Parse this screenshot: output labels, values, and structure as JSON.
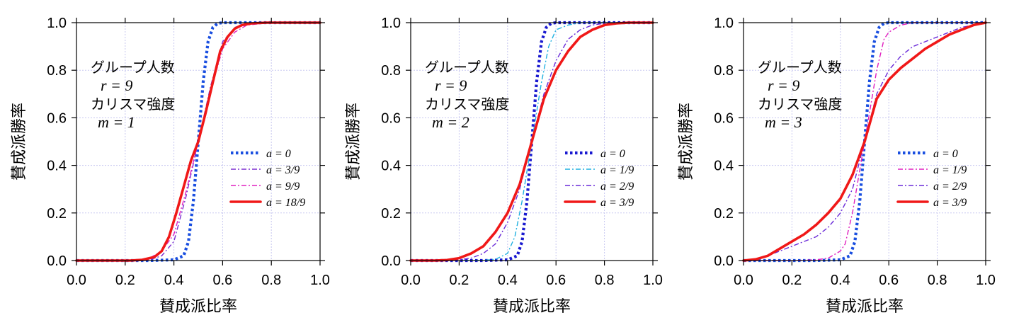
{
  "chart_data": [
    {
      "type": "line",
      "xlabel": "賛成派比率",
      "ylabel": "賛成派勝率",
      "xlim": [
        0,
        1
      ],
      "ylim": [
        0,
        1
      ],
      "xticks": [
        "0.0",
        "0.2",
        "0.4",
        "0.6",
        "0.8",
        "1.0"
      ],
      "yticks": [
        "0.0",
        "0.2",
        "0.4",
        "0.6",
        "0.8",
        "1.0"
      ],
      "grid": true,
      "legend_position": "lower-right",
      "annotation": [
        "グループ人数",
        "r = 9",
        "カリスマ強度",
        "m = 1"
      ],
      "series": [
        {
          "name": "a = 0",
          "color": "#1a4fe0",
          "style": "dotted-thick",
          "x": [
            0,
            0.1,
            0.2,
            0.3,
            0.4,
            0.44,
            0.46,
            0.48,
            0.5,
            0.52,
            0.54,
            0.56,
            0.58,
            0.6,
            0.7,
            0.8,
            1.0
          ],
          "y": [
            0,
            0,
            0,
            0,
            0.003,
            0.02,
            0.08,
            0.25,
            0.5,
            0.75,
            0.92,
            0.98,
            0.997,
            1,
            1,
            1,
            1
          ]
        },
        {
          "name": "a = 3/9",
          "color": "#7b2fd0",
          "style": "dashdot",
          "x": [
            0,
            0.2,
            0.3,
            0.35,
            0.4,
            0.45,
            0.5,
            0.55,
            0.6,
            0.65,
            0.7,
            0.8,
            1.0
          ],
          "y": [
            0,
            0,
            0.003,
            0.02,
            0.08,
            0.27,
            0.5,
            0.73,
            0.92,
            0.98,
            0.997,
            1,
            1
          ]
        },
        {
          "name": "a = 9/9",
          "color": "#e020c0",
          "style": "dashdot",
          "x": [
            0,
            0.2,
            0.25,
            0.3,
            0.35,
            0.4,
            0.45,
            0.5,
            0.55,
            0.6,
            0.65,
            0.7,
            0.8,
            1.0
          ],
          "y": [
            0,
            0,
            0.003,
            0.01,
            0.04,
            0.11,
            0.29,
            0.5,
            0.71,
            0.89,
            0.96,
            0.99,
            1,
            1
          ]
        },
        {
          "name": "a = 18/9",
          "color": "#f01818",
          "style": "solid-thick",
          "x": [
            0,
            0.22,
            0.27,
            0.32,
            0.35,
            0.38,
            0.41,
            0.44,
            0.47,
            0.5,
            0.53,
            0.56,
            0.59,
            0.62,
            0.65,
            0.68,
            0.72,
            0.78,
            1.0
          ],
          "y": [
            0,
            0,
            0.003,
            0.015,
            0.04,
            0.1,
            0.2,
            0.31,
            0.42,
            0.5,
            0.62,
            0.75,
            0.88,
            0.94,
            0.975,
            0.99,
            0.997,
            1,
            1
          ]
        }
      ]
    },
    {
      "type": "line",
      "xlabel": "賛成派比率",
      "ylabel": "賛成派勝率",
      "xlim": [
        0,
        1
      ],
      "ylim": [
        0,
        1
      ],
      "xticks": [
        "0.0",
        "0.2",
        "0.4",
        "0.6",
        "0.8",
        "1.0"
      ],
      "yticks": [
        "0.0",
        "0.2",
        "0.4",
        "0.6",
        "0.8",
        "1.0"
      ],
      "grid": true,
      "legend_position": "lower-right",
      "annotation": [
        "グループ人数",
        "r = 9",
        "カリスマ強度",
        "m = 2"
      ],
      "series": [
        {
          "name": "a = 0",
          "color": "#1a1ad0",
          "style": "dotted-thick",
          "x": [
            0,
            0.1,
            0.2,
            0.3,
            0.4,
            0.44,
            0.46,
            0.48,
            0.5,
            0.52,
            0.54,
            0.56,
            0.58,
            0.6,
            0.7,
            0.8,
            1.0
          ],
          "y": [
            0,
            0,
            0,
            0,
            0.003,
            0.02,
            0.08,
            0.25,
            0.5,
            0.75,
            0.92,
            0.98,
            0.997,
            1,
            1,
            1,
            1
          ]
        },
        {
          "name": "a = 1/9",
          "color": "#20b0e0",
          "style": "dashdot",
          "x": [
            0,
            0.3,
            0.35,
            0.4,
            0.43,
            0.46,
            0.5,
            0.54,
            0.57,
            0.6,
            0.65,
            0.7,
            0.8,
            1.0
          ],
          "y": [
            0,
            0.001,
            0.005,
            0.03,
            0.1,
            0.25,
            0.5,
            0.75,
            0.9,
            0.97,
            0.99,
            1,
            1,
            1
          ]
        },
        {
          "name": "a = 2/9",
          "color": "#6a2ad8",
          "style": "dashdot",
          "x": [
            0,
            0.15,
            0.2,
            0.25,
            0.3,
            0.35,
            0.4,
            0.45,
            0.5,
            0.55,
            0.6,
            0.65,
            0.7,
            0.75,
            0.8,
            0.85,
            0.9,
            1.0
          ],
          "y": [
            0,
            0,
            0.003,
            0.01,
            0.03,
            0.07,
            0.16,
            0.3,
            0.5,
            0.7,
            0.84,
            0.93,
            0.97,
            0.99,
            0.997,
            1,
            1,
            1
          ]
        },
        {
          "name": "a = 3/9",
          "color": "#f01818",
          "style": "solid-thick",
          "x": [
            0,
            0.1,
            0.15,
            0.2,
            0.25,
            0.3,
            0.35,
            0.4,
            0.45,
            0.5,
            0.55,
            0.6,
            0.65,
            0.7,
            0.75,
            0.8,
            0.85,
            0.9,
            1.0
          ],
          "y": [
            0,
            0,
            0.002,
            0.01,
            0.03,
            0.06,
            0.12,
            0.2,
            0.32,
            0.5,
            0.68,
            0.8,
            0.88,
            0.94,
            0.97,
            0.99,
            0.997,
            1,
            1
          ]
        }
      ]
    },
    {
      "type": "line",
      "xlabel": "賛成派比率",
      "ylabel": "賛成派勝率",
      "xlim": [
        0,
        1
      ],
      "ylim": [
        0,
        1
      ],
      "xticks": [
        "0.0",
        "0.2",
        "0.4",
        "0.6",
        "0.8",
        "1.0"
      ],
      "yticks": [
        "0.0",
        "0.2",
        "0.4",
        "0.6",
        "0.8",
        "1.0"
      ],
      "grid": true,
      "legend_position": "lower-right",
      "annotation": [
        "グループ人数",
        "r = 9",
        "カリスマ強度",
        "m = 3"
      ],
      "series": [
        {
          "name": "a = 0",
          "color": "#1a4fe0",
          "style": "dotted-thick",
          "x": [
            0,
            0.1,
            0.2,
            0.3,
            0.4,
            0.44,
            0.46,
            0.48,
            0.5,
            0.52,
            0.54,
            0.56,
            0.58,
            0.6,
            0.7,
            0.8,
            1.0
          ],
          "y": [
            0,
            0,
            0,
            0,
            0.003,
            0.02,
            0.08,
            0.25,
            0.5,
            0.75,
            0.92,
            0.98,
            0.997,
            1,
            1,
            1,
            1
          ]
        },
        {
          "name": "a = 1/9",
          "color": "#e020c0",
          "style": "dashdot",
          "x": [
            0,
            0.2,
            0.3,
            0.35,
            0.4,
            0.42,
            0.45,
            0.5,
            0.55,
            0.58,
            0.6,
            0.65,
            0.7,
            1.0
          ],
          "y": [
            0,
            0,
            0.003,
            0.01,
            0.04,
            0.07,
            0.2,
            0.5,
            0.8,
            0.93,
            0.96,
            0.99,
            1,
            1
          ]
        },
        {
          "name": "a = 2/9",
          "color": "#6a2ad8",
          "style": "dashdot",
          "x": [
            0,
            0.05,
            0.1,
            0.15,
            0.2,
            0.25,
            0.3,
            0.35,
            0.4,
            0.45,
            0.5,
            0.55,
            0.6,
            0.65,
            0.7,
            0.75,
            0.8,
            0.85,
            0.9,
            0.95,
            1.0
          ],
          "y": [
            0,
            0.005,
            0.02,
            0.04,
            0.06,
            0.08,
            0.1,
            0.14,
            0.2,
            0.3,
            0.5,
            0.7,
            0.8,
            0.86,
            0.9,
            0.92,
            0.94,
            0.96,
            0.98,
            0.99,
            1
          ]
        },
        {
          "name": "a = 3/9",
          "color": "#f01818",
          "style": "solid-thick",
          "x": [
            0,
            0.05,
            0.1,
            0.15,
            0.2,
            0.25,
            0.3,
            0.35,
            0.4,
            0.45,
            0.5,
            0.55,
            0.6,
            0.65,
            0.7,
            0.75,
            0.8,
            0.85,
            0.9,
            0.95,
            1.0
          ],
          "y": [
            0,
            0.005,
            0.02,
            0.05,
            0.08,
            0.11,
            0.15,
            0.2,
            0.26,
            0.36,
            0.5,
            0.68,
            0.76,
            0.81,
            0.85,
            0.89,
            0.92,
            0.95,
            0.97,
            0.99,
            1
          ]
        }
      ]
    }
  ]
}
